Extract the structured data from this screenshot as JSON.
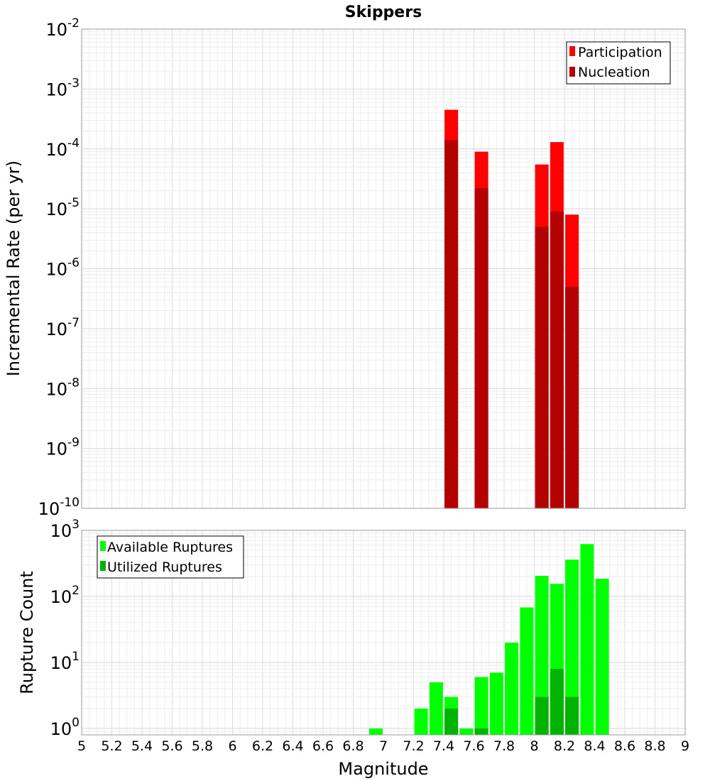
{
  "chart_data": [
    {
      "type": "bar",
      "title": "Skippers",
      "xlabel": "",
      "ylabel": "Incremental Rate (per yr)",
      "yscale": "log",
      "xlim": [
        5,
        9
      ],
      "ylim": [
        1e-10,
        0.01
      ],
      "grid": true,
      "legend_position": "top-right",
      "y_tick_exponents": [
        "-10",
        "-9",
        "-8",
        "-7",
        "-6",
        "-5",
        "-4",
        "-3",
        "-2"
      ],
      "series": [
        {
          "name": "Participation",
          "color": "#ff0000",
          "x": [
            7.45,
            7.65,
            8.05,
            8.15,
            8.25
          ],
          "values": [
            0.00045,
            9e-05,
            5.5e-05,
            0.00013,
            8e-06
          ]
        },
        {
          "name": "Nucleation",
          "color": "#b30000",
          "x": [
            7.45,
            7.65,
            8.05,
            8.15,
            8.25
          ],
          "values": [
            0.00014,
            2.2e-05,
            5e-06,
            9e-06,
            5e-07
          ]
        }
      ]
    },
    {
      "type": "bar",
      "title": "",
      "xlabel": "Magnitude",
      "ylabel": "Rupture Count",
      "yscale": "log",
      "xlim": [
        5,
        9
      ],
      "ylim": [
        0.8,
        1000
      ],
      "grid": true,
      "legend_position": "top-left",
      "x_ticks": [
        "5",
        "5.2",
        "5.4",
        "5.6",
        "5.8",
        "6",
        "6.2",
        "6.4",
        "6.6",
        "6.8",
        "7",
        "7.2",
        "7.4",
        "7.6",
        "7.8",
        "8",
        "8.2",
        "8.4",
        "8.6",
        "8.8",
        "9"
      ],
      "y_tick_exponents": [
        "0",
        "1",
        "2",
        "3"
      ],
      "series": [
        {
          "name": "Available Ruptures",
          "color": "#00ff00",
          "x": [
            6.95,
            7.25,
            7.35,
            7.45,
            7.55,
            7.65,
            7.75,
            7.85,
            7.95,
            8.05,
            8.15,
            8.25,
            8.35,
            8.45
          ],
          "values": [
            1,
            2,
            5,
            3,
            1,
            6,
            7,
            20,
            68,
            205,
            155,
            360,
            620,
            185
          ]
        },
        {
          "name": "Utilized Ruptures",
          "color": "#00b300",
          "x": [
            7.45,
            7.65,
            8.05,
            8.15,
            8.25
          ],
          "values": [
            2,
            1,
            3,
            8,
            3
          ]
        }
      ]
    }
  ]
}
